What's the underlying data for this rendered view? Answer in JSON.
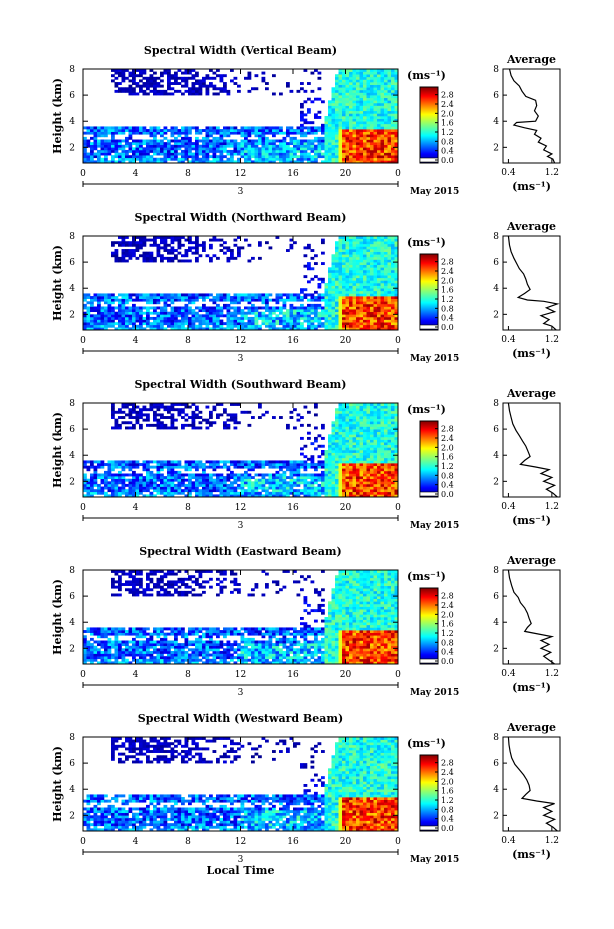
{
  "chart_data": [
    {
      "type": "heatmap",
      "title": "Spectral Width (Vertical Beam)",
      "ylabel": "Height (km)",
      "y_ticks": [
        "2",
        "4",
        "6",
        "8"
      ],
      "x_ticks": [
        "0",
        "4",
        "8",
        "12",
        "16",
        "20",
        "0"
      ],
      "day_label": "3",
      "date_label": "May 2015",
      "colorbar": {
        "unit": "(ms⁻¹)",
        "ticks": [
          "0.0",
          "0.4",
          "0.8",
          "1.2",
          "1.6",
          "2.0",
          "2.4",
          "2.8"
        ],
        "range": [
          0,
          3.0
        ]
      },
      "average_profile": {
        "title": "Average",
        "x_ticks": [
          "0.4",
          "1.2"
        ],
        "xlabel": "(ms⁻¹)",
        "y_ticks": [
          "2",
          "4",
          "6",
          "8"
        ],
        "xlim": [
          0.3,
          1.35
        ],
        "ylim": [
          0.8,
          8.0
        ],
        "points": [
          [
            1.25,
            0.8
          ],
          [
            1.22,
            1.1
          ],
          [
            1.12,
            1.3
          ],
          [
            1.2,
            1.5
          ],
          [
            1.05,
            1.8
          ],
          [
            1.1,
            2.1
          ],
          [
            0.95,
            2.4
          ],
          [
            1.0,
            2.7
          ],
          [
            0.88,
            3.0
          ],
          [
            0.92,
            3.3
          ],
          [
            0.7,
            3.5
          ],
          [
            0.5,
            3.7
          ],
          [
            0.55,
            3.9
          ],
          [
            0.9,
            4.0
          ],
          [
            0.95,
            4.4
          ],
          [
            0.88,
            4.8
          ],
          [
            0.92,
            5.2
          ],
          [
            0.9,
            5.6
          ],
          [
            0.72,
            5.9
          ],
          [
            0.65,
            6.3
          ],
          [
            0.6,
            6.7
          ],
          [
            0.5,
            7.1
          ],
          [
            0.45,
            7.5
          ],
          [
            0.42,
            8.0
          ]
        ]
      }
    },
    {
      "type": "heatmap",
      "title": "Spectral Width (Northward Beam)",
      "ylabel": "Height (km)",
      "y_ticks": [
        "2",
        "4",
        "6",
        "8"
      ],
      "x_ticks": [
        "0",
        "4",
        "8",
        "12",
        "16",
        "20",
        "0"
      ],
      "day_label": "3",
      "date_label": "May 2015",
      "colorbar": {
        "unit": "(ms⁻¹)",
        "ticks": [
          "0.0",
          "0.4",
          "0.8",
          "1.2",
          "1.6",
          "2.0",
          "2.4",
          "2.8"
        ],
        "range": [
          0,
          3.0
        ]
      },
      "average_profile": {
        "title": "Average",
        "x_ticks": [
          "0.4",
          "1.2"
        ],
        "xlabel": "(ms⁻¹)",
        "y_ticks": [
          "2",
          "4",
          "6",
          "8"
        ],
        "xlim": [
          0.3,
          1.35
        ],
        "ylim": [
          0.8,
          8.0
        ],
        "points": [
          [
            1.28,
            0.8
          ],
          [
            1.2,
            1.1
          ],
          [
            1.05,
            1.3
          ],
          [
            1.15,
            1.6
          ],
          [
            1.0,
            1.9
          ],
          [
            1.25,
            2.2
          ],
          [
            1.1,
            2.5
          ],
          [
            1.3,
            2.8
          ],
          [
            1.05,
            3.0
          ],
          [
            0.75,
            3.1
          ],
          [
            0.58,
            3.3
          ],
          [
            0.7,
            3.6
          ],
          [
            0.8,
            3.9
          ],
          [
            0.75,
            4.3
          ],
          [
            0.72,
            4.7
          ],
          [
            0.68,
            5.1
          ],
          [
            0.6,
            5.5
          ],
          [
            0.55,
            5.9
          ],
          [
            0.5,
            6.3
          ],
          [
            0.45,
            6.8
          ],
          [
            0.42,
            7.3
          ],
          [
            0.4,
            8.0
          ]
        ]
      }
    },
    {
      "type": "heatmap",
      "title": "Spectral Width (Southward Beam)",
      "ylabel": "Height (km)",
      "y_ticks": [
        "2",
        "4",
        "6",
        "8"
      ],
      "x_ticks": [
        "0",
        "4",
        "8",
        "12",
        "16",
        "20",
        "0"
      ],
      "day_label": "3",
      "date_label": "May 2015",
      "colorbar": {
        "unit": "(ms⁻¹)",
        "ticks": [
          "0.0",
          "0.4",
          "0.8",
          "1.2",
          "1.6",
          "2.0",
          "2.4",
          "2.8"
        ],
        "range": [
          0,
          3.0
        ]
      },
      "average_profile": {
        "title": "Average",
        "x_ticks": [
          "0.4",
          "1.2"
        ],
        "xlabel": "(ms⁻¹)",
        "y_ticks": [
          "2",
          "4",
          "6",
          "8"
        ],
        "xlim": [
          0.3,
          1.35
        ],
        "ylim": [
          0.8,
          8.0
        ],
        "points": [
          [
            1.3,
            0.8
          ],
          [
            1.22,
            1.1
          ],
          [
            1.1,
            1.4
          ],
          [
            1.25,
            1.7
          ],
          [
            1.05,
            2.0
          ],
          [
            1.2,
            2.3
          ],
          [
            1.0,
            2.6
          ],
          [
            1.15,
            2.9
          ],
          [
            0.9,
            3.1
          ],
          [
            0.62,
            3.3
          ],
          [
            0.7,
            3.6
          ],
          [
            0.8,
            3.9
          ],
          [
            0.76,
            4.3
          ],
          [
            0.72,
            4.7
          ],
          [
            0.66,
            5.1
          ],
          [
            0.6,
            5.5
          ],
          [
            0.54,
            5.9
          ],
          [
            0.48,
            6.4
          ],
          [
            0.45,
            6.9
          ],
          [
            0.42,
            7.4
          ],
          [
            0.4,
            8.0
          ]
        ]
      }
    },
    {
      "type": "heatmap",
      "title": "Spectral Width (Eastward Beam)",
      "ylabel": "Height (km)",
      "y_ticks": [
        "2",
        "4",
        "6",
        "8"
      ],
      "x_ticks": [
        "0",
        "4",
        "8",
        "12",
        "16",
        "20",
        "0"
      ],
      "day_label": "3",
      "date_label": "May 2015",
      "colorbar": {
        "unit": "(ms⁻¹)",
        "ticks": [
          "0.0",
          "0.4",
          "0.8",
          "1.2",
          "1.6",
          "2.0",
          "2.4",
          "2.8"
        ],
        "range": [
          0,
          3.0
        ]
      },
      "average_profile": {
        "title": "Average",
        "x_ticks": [
          "0.4",
          "1.2"
        ],
        "xlabel": "(ms⁻¹)",
        "y_ticks": [
          "2",
          "4",
          "6",
          "8"
        ],
        "xlim": [
          0.3,
          1.35
        ],
        "ylim": [
          0.8,
          8.0
        ],
        "points": [
          [
            1.25,
            0.8
          ],
          [
            1.15,
            1.1
          ],
          [
            1.05,
            1.4
          ],
          [
            1.18,
            1.7
          ],
          [
            1.0,
            2.0
          ],
          [
            1.15,
            2.3
          ],
          [
            1.0,
            2.6
          ],
          [
            1.2,
            2.9
          ],
          [
            0.95,
            3.1
          ],
          [
            0.7,
            3.3
          ],
          [
            0.75,
            3.6
          ],
          [
            0.82,
            3.9
          ],
          [
            0.78,
            4.3
          ],
          [
            0.75,
            4.7
          ],
          [
            0.7,
            5.1
          ],
          [
            0.62,
            5.5
          ],
          [
            0.58,
            5.9
          ],
          [
            0.5,
            6.3
          ],
          [
            0.46,
            6.8
          ],
          [
            0.42,
            7.4
          ],
          [
            0.4,
            8.0
          ]
        ]
      }
    },
    {
      "type": "heatmap",
      "title": "Spectral Width (Westward Beam)",
      "ylabel": "Height (km)",
      "y_ticks": [
        "2",
        "4",
        "6",
        "8"
      ],
      "x_ticks": [
        "0",
        "4",
        "8",
        "12",
        "16",
        "20",
        "0"
      ],
      "day_label": "3",
      "date_label": "May 2015",
      "xlabel": "Local Time",
      "colorbar": {
        "unit": "(ms⁻¹)",
        "ticks": [
          "0.0",
          "0.4",
          "0.8",
          "1.2",
          "1.6",
          "2.0",
          "2.4",
          "2.8"
        ],
        "range": [
          0,
          3.0
        ]
      },
      "average_profile": {
        "title": "Average",
        "x_ticks": [
          "0.4",
          "1.2"
        ],
        "xlabel": "(ms⁻¹)",
        "y_ticks": [
          "2",
          "4",
          "6",
          "8"
        ],
        "xlim": [
          0.3,
          1.35
        ],
        "ylim": [
          0.8,
          8.0
        ],
        "points": [
          [
            1.3,
            0.8
          ],
          [
            1.22,
            1.1
          ],
          [
            1.1,
            1.4
          ],
          [
            1.25,
            1.7
          ],
          [
            1.05,
            2.0
          ],
          [
            1.2,
            2.3
          ],
          [
            1.05,
            2.6
          ],
          [
            1.25,
            2.9
          ],
          [
            0.92,
            3.1
          ],
          [
            0.65,
            3.3
          ],
          [
            0.72,
            3.6
          ],
          [
            0.8,
            3.9
          ],
          [
            0.78,
            4.3
          ],
          [
            0.74,
            4.7
          ],
          [
            0.68,
            5.1
          ],
          [
            0.6,
            5.5
          ],
          [
            0.52,
            5.9
          ],
          [
            0.46,
            6.4
          ],
          [
            0.43,
            6.9
          ],
          [
            0.41,
            7.4
          ],
          [
            0.4,
            8.0
          ]
        ]
      }
    }
  ]
}
